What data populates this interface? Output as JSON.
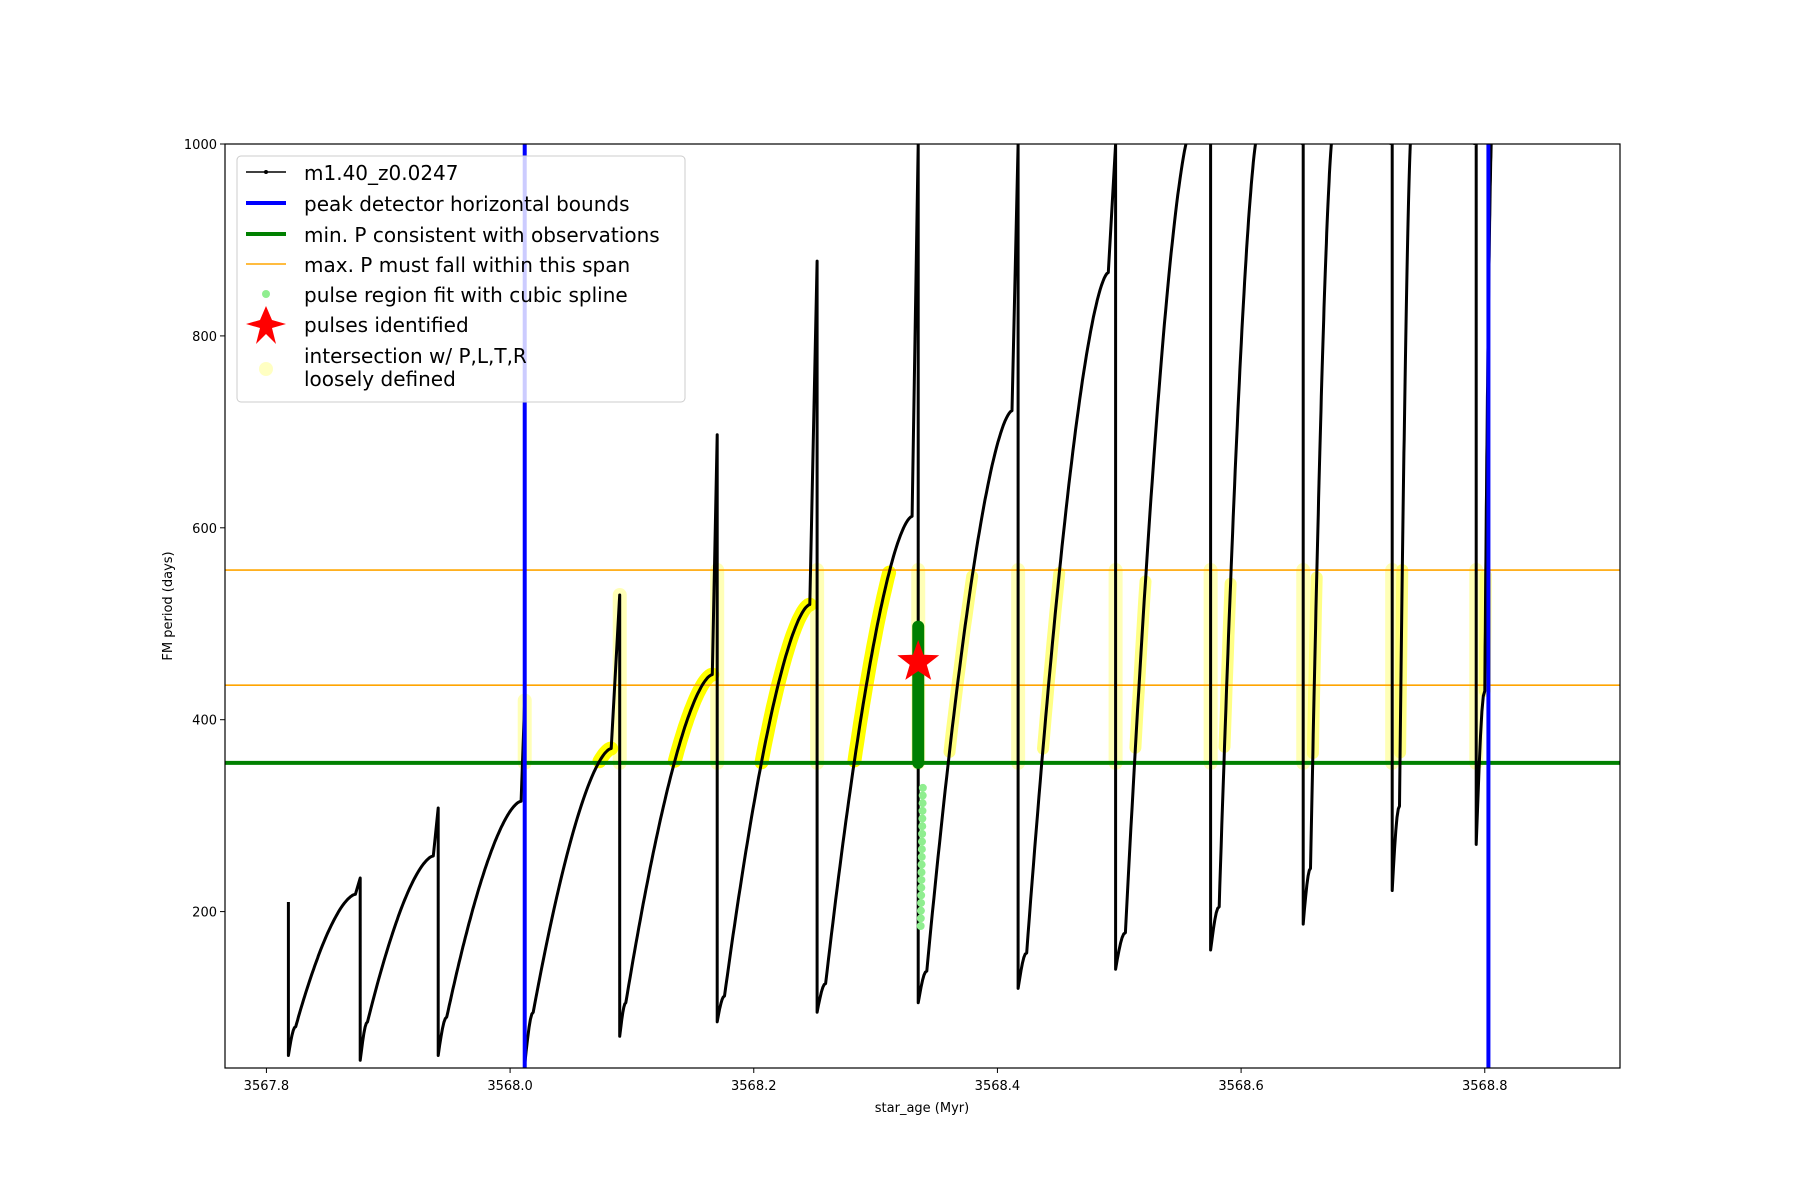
{
  "chart_data": {
    "type": "line",
    "title": "",
    "xlabel": "star_age (Myr)",
    "ylabel": "FM period (days)",
    "xlim": [
      3567.766,
      3568.911
    ],
    "ylim": [
      37,
      1000
    ],
    "xticks": [
      "3567.8",
      "3568.0",
      "3568.2",
      "3568.4",
      "3568.6",
      "3568.8"
    ],
    "xtick_values": [
      3567.8,
      3568.0,
      3568.2,
      3568.4,
      3568.6,
      3568.8
    ],
    "yticks": [
      "200",
      "400",
      "600",
      "800",
      "1000"
    ],
    "ytick_values": [
      200,
      400,
      600,
      800,
      1000
    ],
    "legend_placement": "top-left",
    "legend": [
      {
        "label": "m1.40_z0.0247",
        "color": "#000000"
      },
      {
        "label": "peak detector horizontal bounds",
        "color": "#0000ff"
      },
      {
        "label": "min. P consistent with observations",
        "color": "#008000"
      },
      {
        "label": "max. P must fall within this span",
        "color": "#ffa500"
      },
      {
        "label": "pulse region fit with cubic spline",
        "color": "#90ee90"
      },
      {
        "label": "pulses identified",
        "color": "#ff0000"
      },
      {
        "label": "intersection w/ P,L,T,R\nloosely defined",
        "line1": "intersection w/ P,L,T,R",
        "line2": "loosely defined",
        "color": "#ffff99"
      }
    ],
    "series_main": {
      "name": "m1.40_z0.0247",
      "cycles": [
        {
          "spike": 3567.818,
          "lo": 50,
          "hi": 210,
          "min_t": 3567.824,
          "min": 80,
          "peak_t": 3567.873,
          "peak": 218
        },
        {
          "spike": 3567.877,
          "lo": 45,
          "hi": 235,
          "min_t": 3567.883,
          "min": 85,
          "peak_t": 3567.937,
          "peak": 258
        },
        {
          "spike": 3567.941,
          "lo": 50,
          "hi": 308,
          "min_t": 3567.948,
          "min": 90,
          "peak_t": 3568.009,
          "peak": 315
        },
        {
          "spike": 3568.012,
          "lo": 40,
          "hi": 420,
          "min_t": 3568.019,
          "min": 95,
          "peak_t": 3568.083,
          "peak": 370
        },
        {
          "spike": 3568.09,
          "lo": 70,
          "hi": 530,
          "min_t": 3568.095,
          "min": 105,
          "peak_t": 3568.166,
          "peak": 447
        },
        {
          "spike": 3568.17,
          "lo": 85,
          "hi": 697,
          "min_t": 3568.176,
          "min": 112,
          "peak_t": 3568.246,
          "peak": 520
        },
        {
          "spike": 3568.252,
          "lo": 95,
          "hi": 878,
          "min_t": 3568.259,
          "min": 125,
          "peak_t": 3568.33,
          "peak": 612
        },
        {
          "spike": 3568.335,
          "lo": 105,
          "hi": 1000,
          "min_t": 3568.342,
          "min": 138,
          "peak_t": 3568.412,
          "peak": 722
        },
        {
          "spike": 3568.417,
          "lo": 120,
          "hi": 1000,
          "min_t": 3568.424,
          "min": 157,
          "peak_t": 3568.491,
          "peak": 866
        },
        {
          "spike": 3568.497,
          "lo": 140,
          "hi": 1000,
          "min_t": 3568.505,
          "min": 178,
          "peak_t": 3568.56,
          "peak": 1020
        },
        {
          "spike": 3568.575,
          "lo": 160,
          "hi": 1000,
          "min_t": 3568.582,
          "min": 205,
          "peak_t": 3568.615,
          "peak": 1020
        },
        {
          "spike": 3568.651,
          "lo": 187,
          "hi": 1000,
          "min_t": 3568.657,
          "min": 245,
          "peak_t": 3568.676,
          "peak": 1020
        },
        {
          "spike": 3568.724,
          "lo": 222,
          "hi": 1000,
          "min_t": 3568.73,
          "min": 310,
          "peak_t": 3568.74,
          "peak": 1020
        },
        {
          "spike": 3568.793,
          "lo": 270,
          "hi": 1000,
          "min_t": 3568.8,
          "min": 430,
          "peak_t": 3568.806,
          "peak": 1020
        }
      ]
    },
    "peak_detector_bounds": [
      3568.012,
      3568.803
    ],
    "min_P": 355,
    "max_P_span": [
      436,
      556
    ],
    "spline_region": {
      "x": 3568.337,
      "y_range": [
        185,
        335
      ]
    },
    "pulse_region_fit": {
      "x": 3568.335,
      "y_range": [
        355,
        497
      ]
    },
    "pulses_identified": [
      {
        "x": 3568.335,
        "y": 460
      }
    ]
  }
}
